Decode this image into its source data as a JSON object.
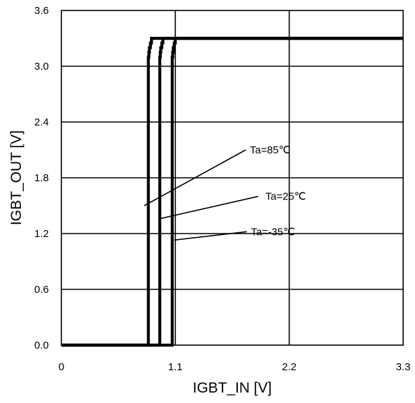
{
  "chart_data": {
    "type": "line",
    "xlabel": "IGBT_IN [V]",
    "ylabel": "IGBT_OUT [V]",
    "xlim": [
      0,
      3.3
    ],
    "ylim": [
      0,
      3.6
    ],
    "x_ticks": [
      0,
      1.1,
      2.2,
      3.3
    ],
    "x_tick_labels": [
      "0",
      "1.1",
      "2.2",
      "3.3"
    ],
    "y_ticks": [
      0,
      0.6,
      1.2,
      1.8,
      2.4,
      3.0,
      3.6
    ],
    "y_tick_labels": [
      "0.0",
      "0.6",
      "1.2",
      "1.8",
      "2.4",
      "3.0",
      "3.6"
    ],
    "grid": true,
    "legend": "annotations",
    "line_color": "#000000",
    "series": [
      {
        "name": "Ta=85℃",
        "x": [
          0,
          0.84,
          0.84,
          0.845,
          0.845,
          0.85,
          0.85,
          0.86,
          0.86,
          0.87,
          0.87,
          3.3
        ],
        "y": [
          0,
          0,
          3.1,
          3.1,
          3.15,
          3.15,
          3.2,
          3.2,
          3.25,
          3.25,
          3.3,
          3.3
        ]
      },
      {
        "name": "Ta=25℃",
        "x": [
          0,
          0.95,
          0.95,
          0.955,
          0.955,
          0.96,
          0.96,
          0.97,
          0.97,
          0.98,
          0.98,
          3.3
        ],
        "y": [
          0,
          0,
          3.1,
          3.1,
          3.15,
          3.15,
          3.2,
          3.2,
          3.25,
          3.25,
          3.3,
          3.3
        ]
      },
      {
        "name": "Ta=-35℃",
        "x": [
          0,
          1.07,
          1.07,
          1.075,
          1.075,
          1.08,
          1.08,
          1.09,
          1.09,
          1.1,
          1.1,
          3.3
        ],
        "y": [
          0,
          0,
          3.1,
          3.1,
          3.15,
          3.15,
          3.2,
          3.2,
          3.25,
          3.25,
          3.3,
          3.3
        ]
      }
    ],
    "annotations": [
      {
        "text": "Ta=85℃",
        "series": 0,
        "line_from": [
          0.8,
          1.5
        ],
        "line_to": [
          1.78,
          2.1
        ],
        "text_at": [
          1.82,
          2.1
        ]
      },
      {
        "text": "Ta=25℃",
        "series": 1,
        "line_from": [
          0.95,
          1.36
        ],
        "line_to": [
          1.9,
          1.6
        ],
        "text_at": [
          1.97,
          1.6
        ]
      },
      {
        "text": "Ta=-35℃",
        "series": 2,
        "line_from": [
          1.09,
          1.13
        ],
        "line_to": [
          1.79,
          1.22
        ],
        "text_at": [
          1.83,
          1.22
        ]
      }
    ]
  }
}
